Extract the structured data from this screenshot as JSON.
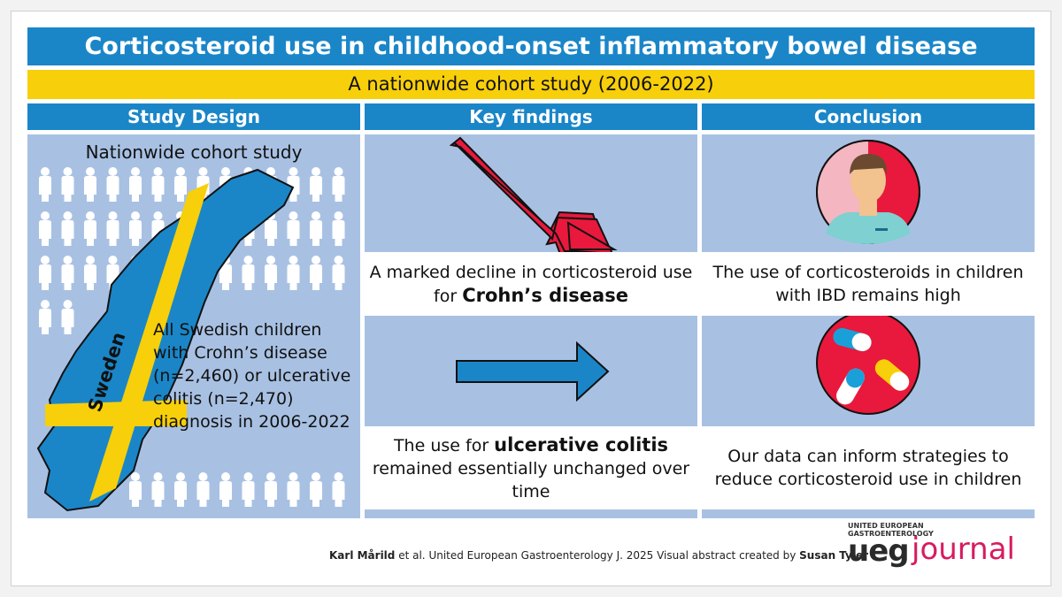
{
  "title": "Corticosteroid use in childhood-onset inflammatory bowel disease",
  "subtitle": "A nationwide cohort study (2006-2022)",
  "columns": {
    "design": "Study Design",
    "findings": "Key findings",
    "conclusion": "Conclusion"
  },
  "design": {
    "heading": "Nationwide cohort study",
    "map_label": "Sweden",
    "text": "All Swedish children with Crohn’s disease (n=2,460) or ulcerative colitis (n=2,470) diagnosis in 2006-2022"
  },
  "findings": {
    "first_pre": "A marked decline in corticosteroid use for",
    "first_bold": "Crohn’s disease",
    "second_pre": "The use for",
    "second_bold": "ulcerative colitis",
    "second_post": "remained essentially unchanged over time"
  },
  "conclusion": {
    "first": "The use of corticosteroids in children with IBD remains high",
    "second": "Our data can inform strategies to reduce corticosteroid use in children"
  },
  "footer": {
    "author": "Karl Mårild",
    "citation": "et al. United European Gastroenterology J. 2025 Visual abstract created by",
    "creator": "Susan Tyler"
  },
  "logo": {
    "top": "UNITED EUROPEAN GASTROENTEROLOGY",
    "ueg": "ueg",
    "journal": "journal"
  },
  "colors": {
    "blue": "#1a86c8",
    "yellow": "#f7cf0a",
    "panel": "#a8c1e3",
    "red": "#e8193c",
    "arrow_blue": "#1a86c8",
    "pink": "#d81b60"
  },
  "icons": [
    "person-icon",
    "decline-arrow-icon",
    "right-arrow-icon",
    "doctor-icon",
    "pills-icon"
  ]
}
